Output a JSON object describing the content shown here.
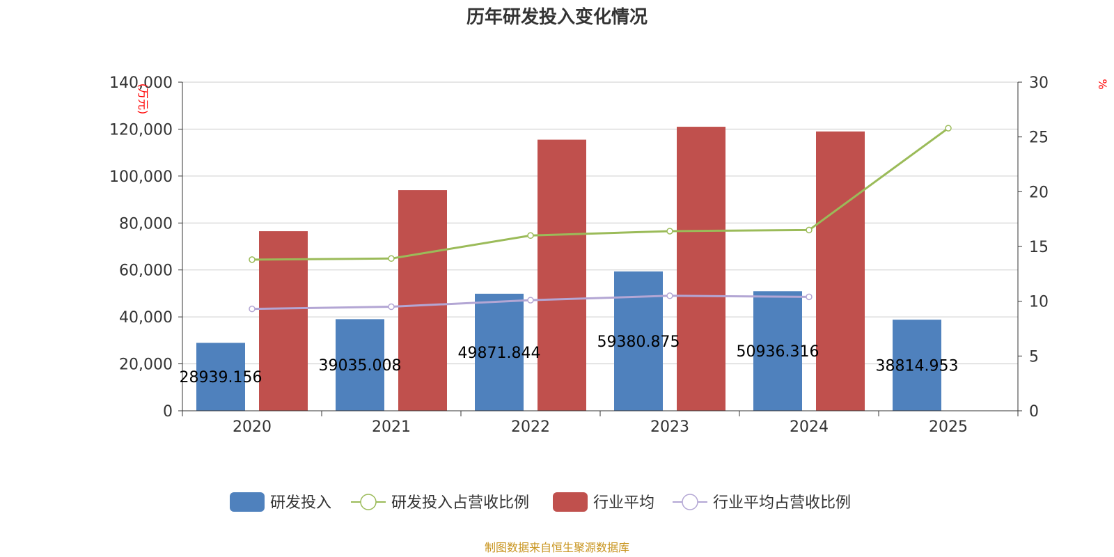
{
  "chart_data": {
    "type": "bar",
    "title": "历年研发投入变化情况",
    "categories": [
      "2020",
      "2021",
      "2022",
      "2023",
      "2024",
      "2025"
    ],
    "y_left": {
      "unit": "(万元)",
      "ylim": [
        0,
        140000
      ],
      "ticks": [
        "0",
        "20,000",
        "40,000",
        "60,000",
        "80,000",
        "100,000",
        "120,000",
        "140,000"
      ]
    },
    "y_right": {
      "unit": "%",
      "ylim": [
        0,
        30
      ],
      "ticks": [
        "0",
        "5",
        "10",
        "15",
        "20",
        "25",
        "30"
      ]
    },
    "series": [
      {
        "name": "研发投入",
        "type": "bar",
        "axis": "left",
        "color": "#4f81bd",
        "values": [
          28939.156,
          39035.008,
          49871.844,
          59380.875,
          50936.316,
          38814.953
        ],
        "labels": [
          "28939.156",
          "39035.008",
          "49871.844",
          "59380.875",
          "50936.316",
          "38814.953"
        ]
      },
      {
        "name": "研发投入占营收比例",
        "type": "line",
        "axis": "right",
        "color": "#9bbb59",
        "values": [
          13.8,
          13.9,
          16.0,
          16.4,
          16.5,
          25.8
        ]
      },
      {
        "name": "行业平均",
        "type": "bar",
        "axis": "left",
        "color": "#c0504d",
        "values": [
          76500,
          94000,
          115500,
          121000,
          119000,
          null
        ]
      },
      {
        "name": "行业平均占营收比例",
        "type": "line",
        "axis": "right",
        "color": "#b3a6d4",
        "values": [
          9.3,
          9.5,
          10.1,
          10.5,
          10.4,
          null
        ]
      }
    ],
    "grid": true,
    "legend_position": "bottom"
  },
  "source_text": "制图数据来自恒生聚源数据库"
}
